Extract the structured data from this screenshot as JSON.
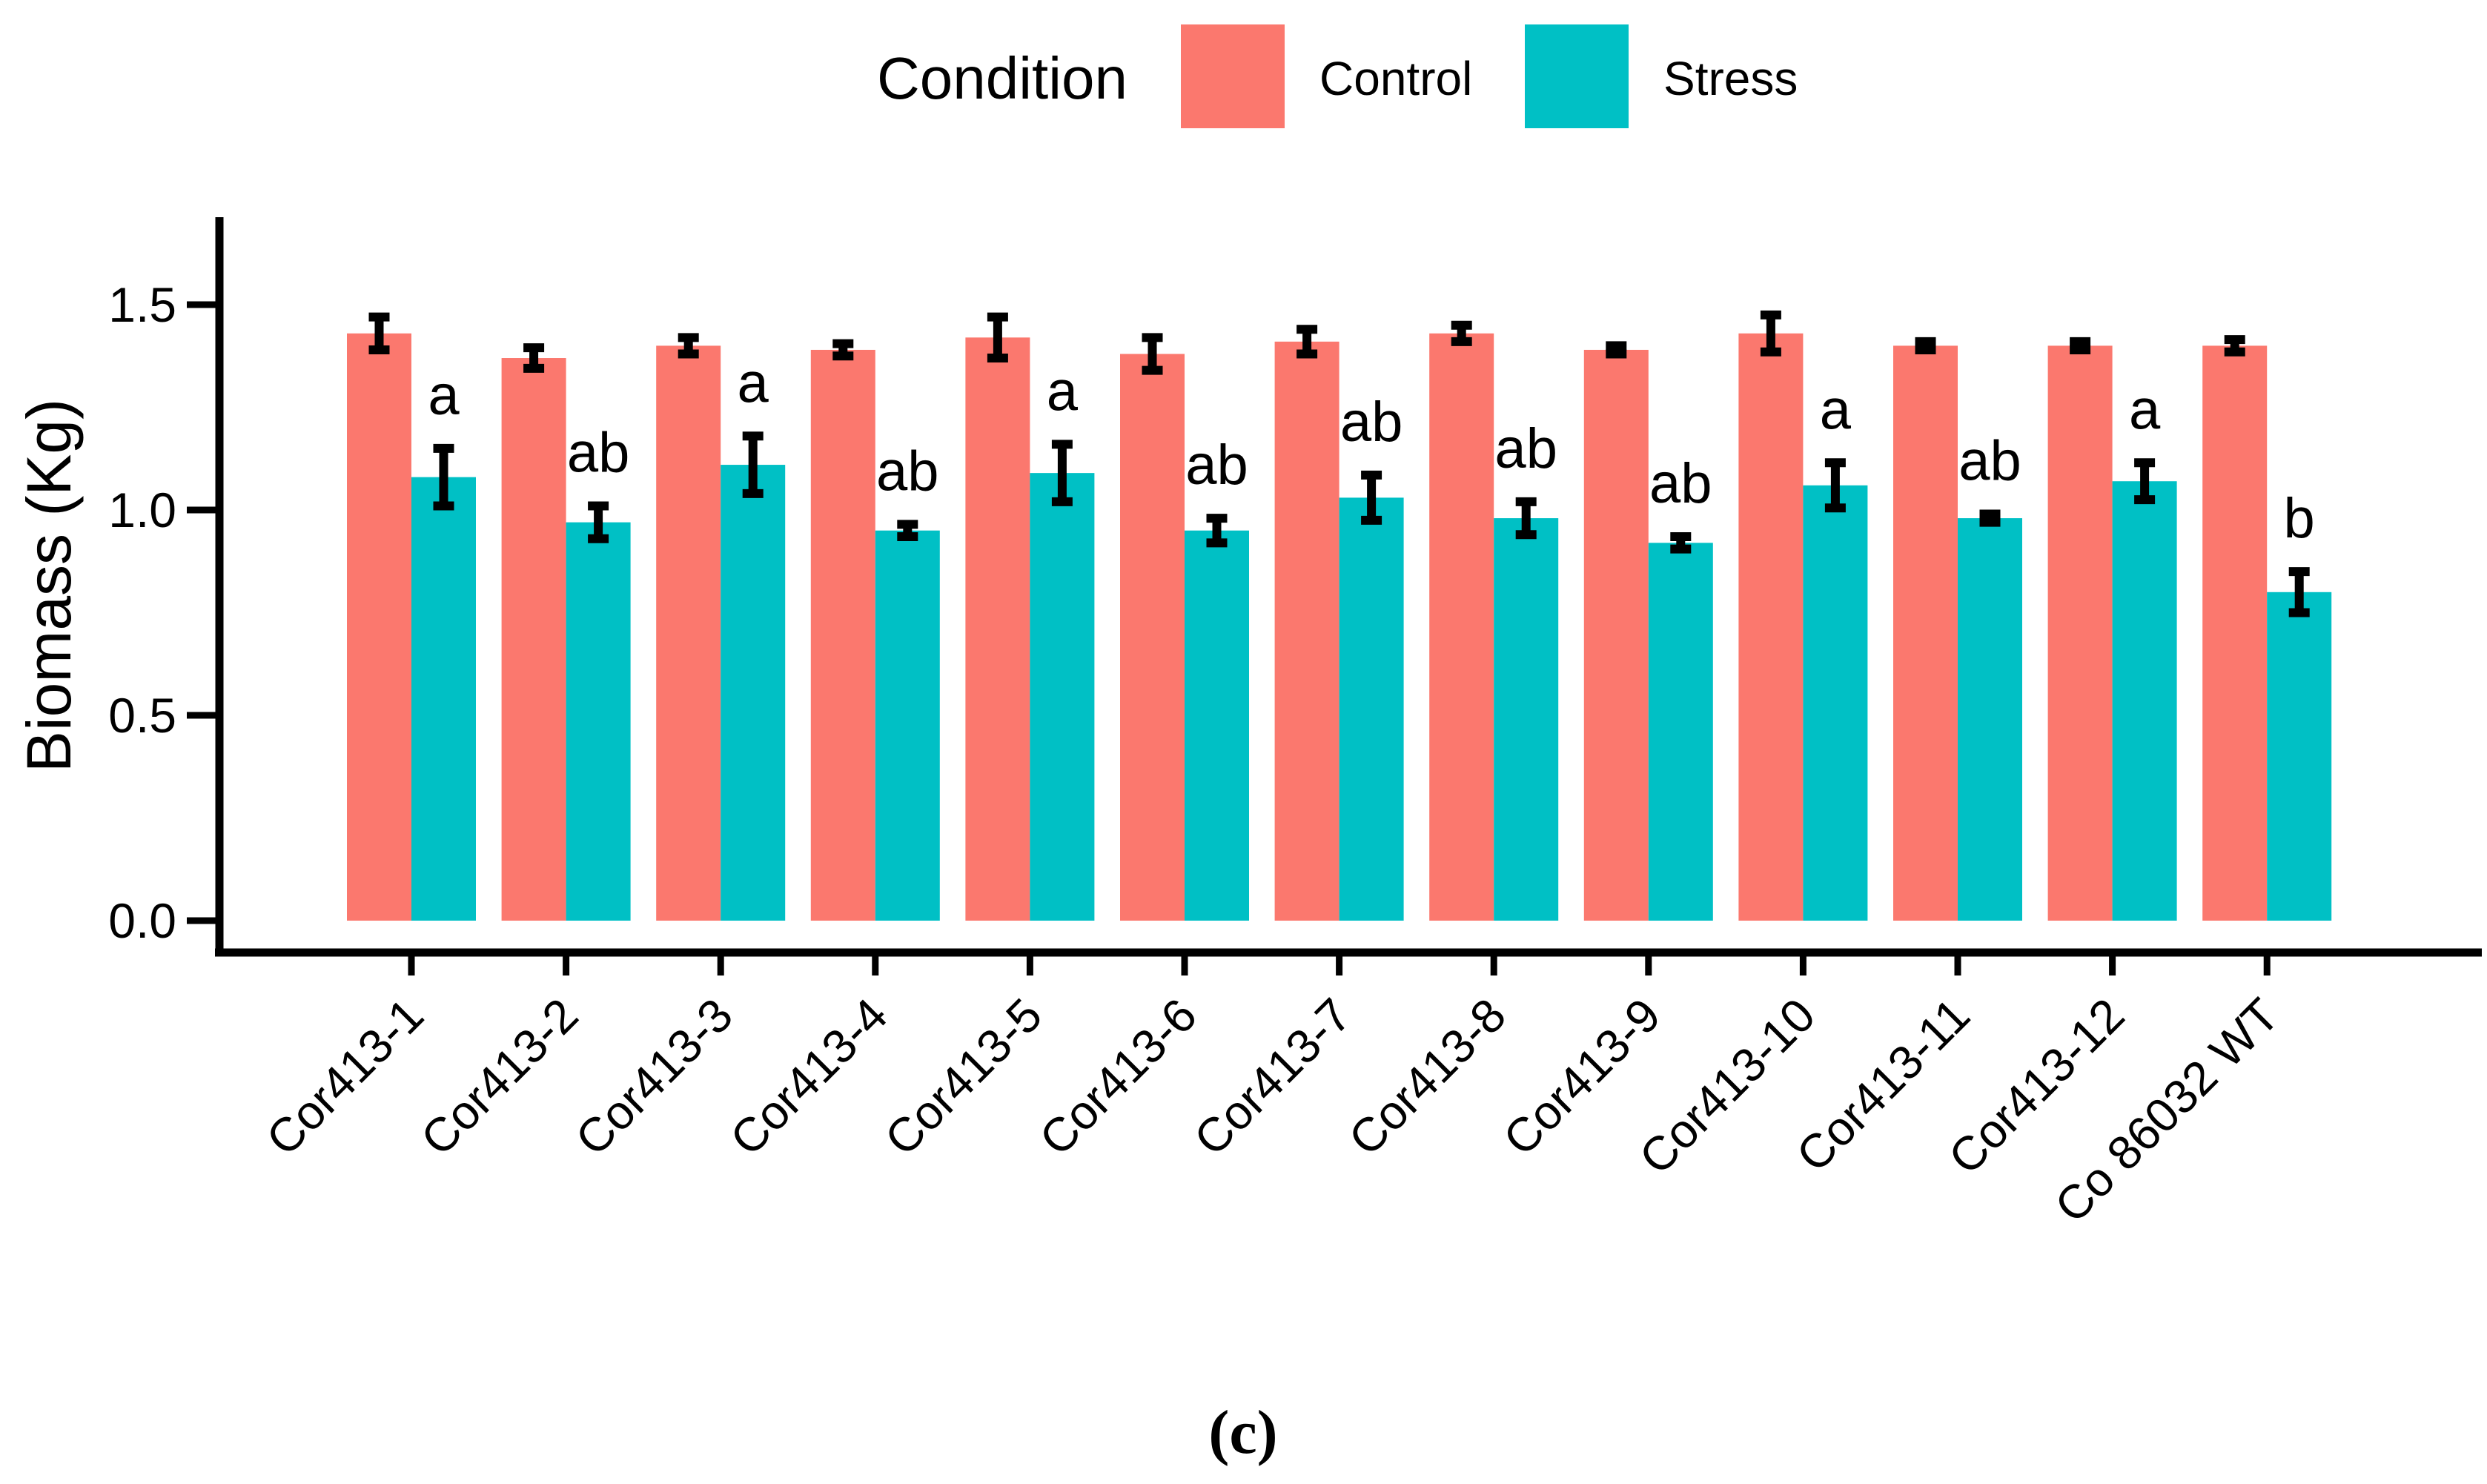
{
  "figure": {
    "caption": "(c)"
  },
  "legend": {
    "title": "Condition",
    "items": [
      {
        "label": "Control",
        "color": "#FB786E"
      },
      {
        "label": "Stress",
        "color": "#00C0C5"
      }
    ]
  },
  "chart_data": {
    "type": "bar",
    "title": "",
    "xlabel": "",
    "ylabel": "Biomass (Kg)",
    "ylim": [
      0,
      1.5
    ],
    "yticks": [
      0.0,
      0.5,
      1.0,
      1.5
    ],
    "grid": false,
    "legend_position": "top-center",
    "legend_title": "Condition",
    "bar_mode": "grouped-dodge",
    "error_bar_color": "#000000",
    "categories": [
      "Cor413-1",
      "Cor413-2",
      "Cor413-3",
      "Cor413-4",
      "Cor413-5",
      "Cor413-6",
      "Cor413-7",
      "Cor413-8",
      "Cor413-9",
      "Cor413-10",
      "Cor413-11",
      "Cor413-12",
      "Co 86032 WT"
    ],
    "series": [
      {
        "name": "Control",
        "color": "#FB786E",
        "values": [
          1.43,
          1.37,
          1.4,
          1.39,
          1.42,
          1.38,
          1.41,
          1.43,
          1.39,
          1.43,
          1.4,
          1.4,
          1.4
        ],
        "errors": [
          0.04,
          0.025,
          0.02,
          0.015,
          0.05,
          0.04,
          0.03,
          0.02,
          0.01,
          0.045,
          0.01,
          0.01,
          0.015
        ]
      },
      {
        "name": "Stress",
        "color": "#00C0C5",
        "values": [
          1.08,
          0.97,
          1.11,
          0.95,
          1.09,
          0.95,
          1.03,
          0.98,
          0.92,
          1.06,
          0.98,
          1.07,
          0.8
        ],
        "errors": [
          0.07,
          0.04,
          0.07,
          0.015,
          0.07,
          0.03,
          0.055,
          0.04,
          0.015,
          0.055,
          0.01,
          0.045,
          0.05
        ]
      }
    ],
    "significance_letters": [
      "a",
      "ab",
      "a",
      "ab",
      "a",
      "ab",
      "ab",
      "ab",
      "ab",
      "a",
      "ab",
      "a",
      "b"
    ]
  }
}
